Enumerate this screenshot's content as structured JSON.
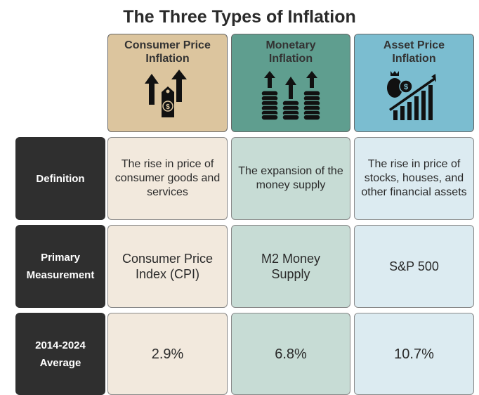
{
  "title": "The Three Types of Inflation",
  "columns": [
    {
      "label": "Consumer Price Inflation",
      "icon": "arrows-price-tag-icon",
      "color": "#dcc59e",
      "cell_color": "#f2e9dd"
    },
    {
      "label": "Monetary Inflation",
      "icon": "coin-stacks-arrows-icon",
      "color": "#5f9e8f",
      "cell_color": "#c7dcd5"
    },
    {
      "label": "Asset Price Inflation",
      "icon": "money-bag-growth-chart-icon",
      "color": "#7bbdd0",
      "cell_color": "#dcebf1"
    }
  ],
  "rows": [
    {
      "label": "Definition",
      "cells": [
        "The rise in price of consumer goods and services",
        "The expansion of the money supply",
        "The rise in price of stocks, houses, and other financial assets"
      ]
    },
    {
      "label": "Primary Measurement",
      "cells": [
        "Consumer Price Index (CPI)",
        "M2 Money Supply",
        "S&P 500"
      ]
    },
    {
      "label": "2014-2024 Average",
      "cells": [
        "2.9%",
        "6.8%",
        "10.7%"
      ]
    }
  ]
}
